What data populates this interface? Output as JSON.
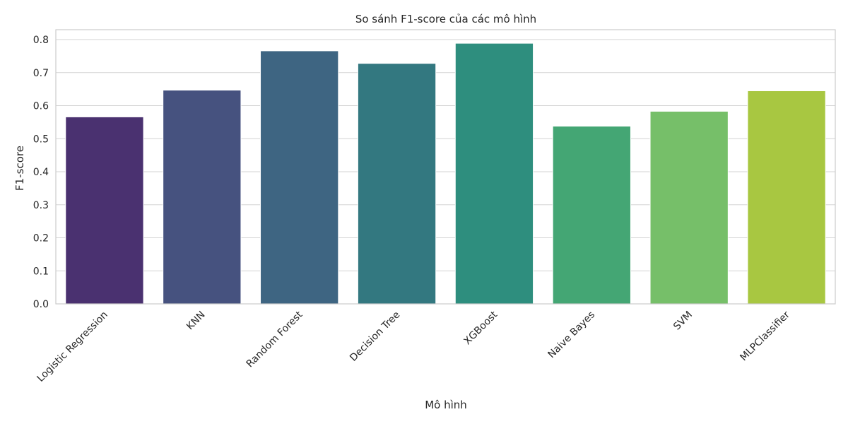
{
  "chart_data": {
    "type": "bar",
    "title": "So sánh F1-score của các mô hình",
    "xlabel": "Mô hình",
    "ylabel": "F1-score",
    "categories": [
      "Logistic Regression",
      "KNN",
      "Random Forest",
      "Decision Tree",
      "XGBoost",
      "Naive Bayes",
      "SVM",
      "MLPClassifier"
    ],
    "values": [
      0.566,
      0.647,
      0.766,
      0.728,
      0.789,
      0.538,
      0.583,
      0.645
    ],
    "colors": [
      "#4a3170",
      "#46527f",
      "#3e6582",
      "#337880",
      "#2e8e7e",
      "#44a674",
      "#76bf69",
      "#a8c741"
    ],
    "ylim": [
      0,
      0.83
    ],
    "yticks": [
      "0.0",
      "0.1",
      "0.2",
      "0.3",
      "0.4",
      "0.5",
      "0.6",
      "0.7",
      "0.8"
    ],
    "grid": true,
    "legend": "none"
  }
}
